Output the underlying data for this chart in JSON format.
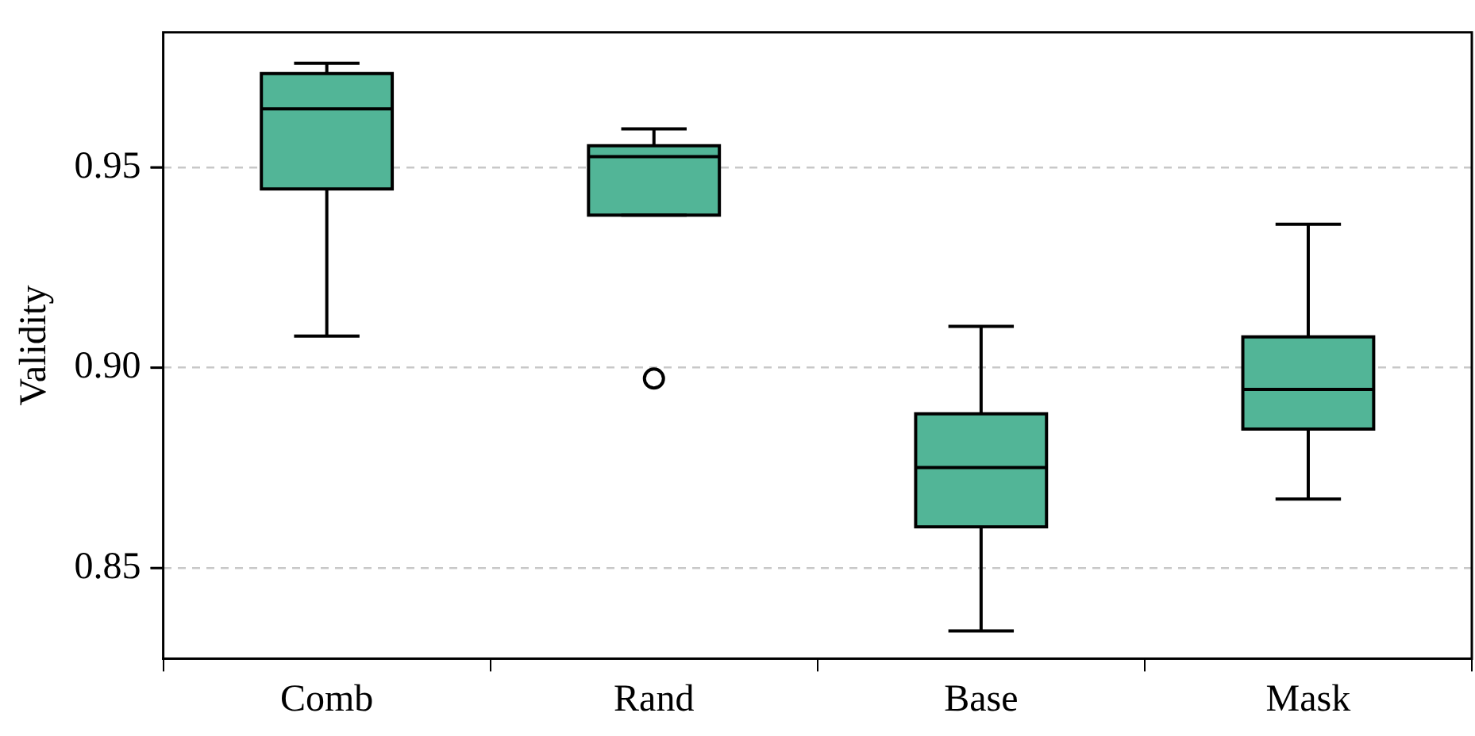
{
  "chart_data": {
    "type": "box",
    "ylabel": "Validity",
    "categories": [
      "Comb",
      "Rand",
      "Base",
      "Mask"
    ],
    "color": "#52b597",
    "boxes": [
      {
        "low": 0.9079,
        "q1": 0.9446,
        "median": 0.9646,
        "q3": 0.9734,
        "high": 0.976
      },
      {
        "low": 0.9381,
        "q1": 0.9381,
        "median": 0.9527,
        "q3": 0.9554,
        "high": 0.9596,
        "outliers": [
          0.8973
        ]
      },
      {
        "low": 0.8343,
        "q1": 0.8603,
        "median": 0.8751,
        "q3": 0.8885,
        "high": 0.9103
      },
      {
        "low": 0.8672,
        "q1": 0.8847,
        "median": 0.8946,
        "q3": 0.9077,
        "high": 0.9358
      }
    ],
    "ylim": [
      0.8274,
      0.9837
    ],
    "yticks": [
      0.85,
      {
        "value": 0.9,
        "label": "0.90"
      },
      0.95
    ],
    "grid": "y",
    "line_style": "dashed"
  }
}
